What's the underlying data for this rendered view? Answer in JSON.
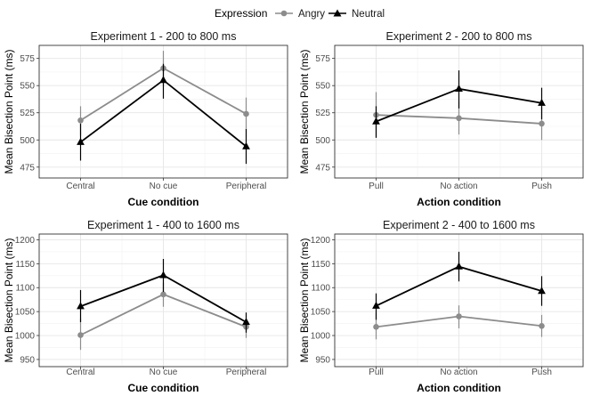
{
  "legend": {
    "title": "Expression",
    "entries": [
      {
        "name": "Angry",
        "color": "#8c8c8c",
        "shape": "circle"
      },
      {
        "name": "Neutral",
        "color": "#000000",
        "shape": "triangle"
      }
    ]
  },
  "chart_data": [
    {
      "type": "line",
      "title": "Experiment 1 - 200 to 800 ms",
      "xlabel": "Cue condition",
      "ylabel": "Mean Bisection Point (ms)",
      "categories": [
        "Central",
        "No cue",
        "Peripheral"
      ],
      "ylim": [
        465,
        587
      ],
      "yticks": [
        475,
        500,
        525,
        550,
        575
      ],
      "series": [
        {
          "name": "Angry",
          "values": [
            518,
            566,
            524
          ],
          "lower": [
            504,
            550,
            509
          ],
          "upper": [
            531,
            582,
            539
          ]
        },
        {
          "name": "Neutral",
          "values": [
            498,
            555,
            494
          ],
          "lower": [
            481,
            538,
            478
          ],
          "upper": [
            515,
            570,
            510
          ]
        }
      ]
    },
    {
      "type": "line",
      "title": "Experiment 2 - 200 to 800 ms",
      "xlabel": "Action condition",
      "ylabel": "Mean Bisection Point (ms)",
      "categories": [
        "Pull",
        "No action",
        "Push"
      ],
      "ylim": [
        465,
        587
      ],
      "yticks": [
        475,
        500,
        525,
        550,
        575
      ],
      "series": [
        {
          "name": "Angry",
          "values": [
            523,
            520,
            515
          ],
          "lower": [
            502,
            505,
            500
          ],
          "upper": [
            544,
            535,
            530
          ]
        },
        {
          "name": "Neutral",
          "values": [
            517,
            547,
            534
          ],
          "lower": [
            502,
            529,
            519
          ],
          "upper": [
            531,
            564,
            548
          ]
        }
      ]
    },
    {
      "type": "line",
      "title": "Experiment 1 - 400 to 1600 ms",
      "xlabel": "Cue condition",
      "ylabel": "Mean Bisection Point (ms)",
      "categories": [
        "Central",
        "No cue",
        "Peripheral"
      ],
      "ylim": [
        935,
        1212
      ],
      "yticks": [
        950,
        1000,
        1050,
        1100,
        1150,
        1200
      ],
      "series": [
        {
          "name": "Angry",
          "values": [
            1001,
            1086,
            1018
          ],
          "lower": [
            970,
            1060,
            995
          ],
          "upper": [
            1035,
            1110,
            1035
          ]
        },
        {
          "name": "Neutral",
          "values": [
            1061,
            1126,
            1028
          ],
          "lower": [
            1028,
            1091,
            1006
          ],
          "upper": [
            1095,
            1160,
            1048
          ]
        }
      ]
    },
    {
      "type": "line",
      "title": "Experiment 2 - 400 to 1600 ms",
      "xlabel": "Action condition",
      "ylabel": "Mean Bisection Point (ms)",
      "categories": [
        "Pull",
        "No action",
        "Push"
      ],
      "ylim": [
        935,
        1212
      ],
      "yticks": [
        950,
        1000,
        1050,
        1100,
        1150,
        1200
      ],
      "series": [
        {
          "name": "Angry",
          "values": [
            1018,
            1040,
            1020
          ],
          "lower": [
            992,
            1015,
            997
          ],
          "upper": [
            1047,
            1063,
            1043
          ]
        },
        {
          "name": "Neutral",
          "values": [
            1062,
            1144,
            1093
          ],
          "lower": [
            1033,
            1113,
            1062
          ],
          "upper": [
            1088,
            1175,
            1124
          ]
        }
      ]
    }
  ]
}
